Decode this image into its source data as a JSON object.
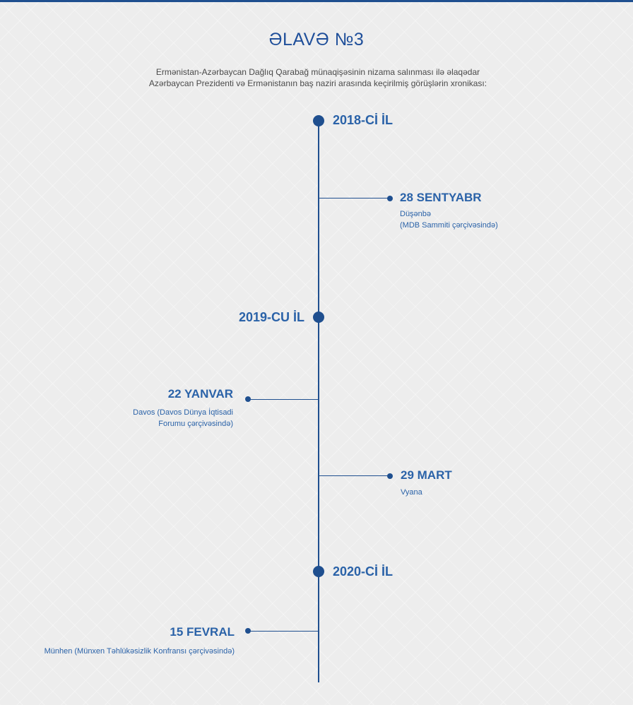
{
  "title": "ƏLAVƏ №3",
  "subtitle": {
    "line1": "Ermənistan-Azərbaycan Dağlıq Qarabağ münaqişəsinin nizama salınması ilə əlaqədar",
    "line2": "Azərbaycan Prezidenti və Ermənistanın baş naziri arasında keçirilmiş görüşlərin xronikası:"
  },
  "colors": {
    "accent": "#1f4f8f",
    "label": "#2a62a8",
    "background": "#ededed"
  },
  "timeline": {
    "years": [
      {
        "label": "2018-Cİ İL"
      },
      {
        "label": "2019-CU İL"
      },
      {
        "label": "2020-Cİ İL"
      }
    ],
    "events": [
      {
        "date": "28 SENTYABR",
        "desc_line1": "Düşənbə",
        "desc_line2": "(MDB Sammiti çərçivəsində)"
      },
      {
        "date": "22 YANVAR",
        "desc_line1": "Davos (Davos Dünya İqtisadi",
        "desc_line2": "Forumu çərçivəsində)"
      },
      {
        "date": "29 MART",
        "desc_line1": "Vyana"
      },
      {
        "date": "15 FEVRAL",
        "desc_line1": "Münhen (Münxen Təhlükəsizlik Konfransı çərçivəsində)"
      }
    ]
  }
}
